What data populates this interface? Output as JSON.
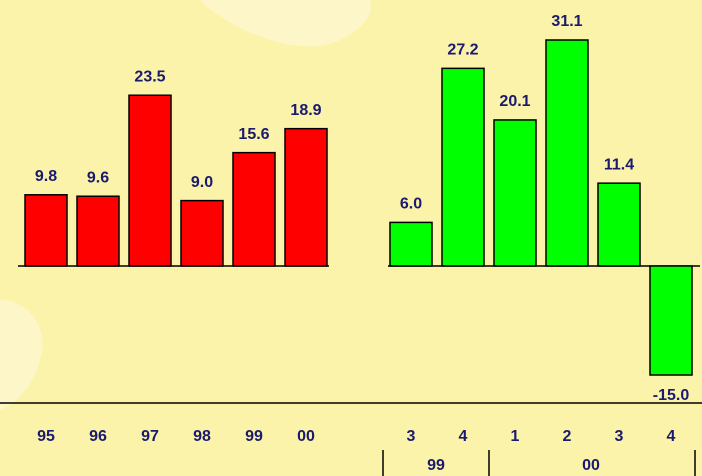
{
  "chart_data": {
    "type": "bar",
    "categories": [
      "95",
      "96",
      "97",
      "98",
      "99",
      "00",
      "3",
      "4",
      "1",
      "2",
      "3",
      "4"
    ],
    "values": [
      9.8,
      9.6,
      23.5,
      9.0,
      15.6,
      18.9,
      6.0,
      27.2,
      20.1,
      31.1,
      11.4,
      -15.0
    ],
    "value_labels": [
      "9.8",
      "9.6",
      "23.5",
      "9.0",
      "15.6",
      "18.9",
      "6.0",
      "27.2",
      "20.1",
      "31.1",
      "11.4",
      "-15.0"
    ],
    "colors": [
      "#ff0000",
      "#ff0000",
      "#ff0000",
      "#ff0000",
      "#ff0000",
      "#ff0000",
      "#00ff00",
      "#00ff00",
      "#00ff00",
      "#00ff00",
      "#00ff00",
      "#00ff00"
    ],
    "groups": [
      {
        "label": "99",
        "count": 2
      },
      {
        "label": "00",
        "count": 4
      }
    ]
  }
}
